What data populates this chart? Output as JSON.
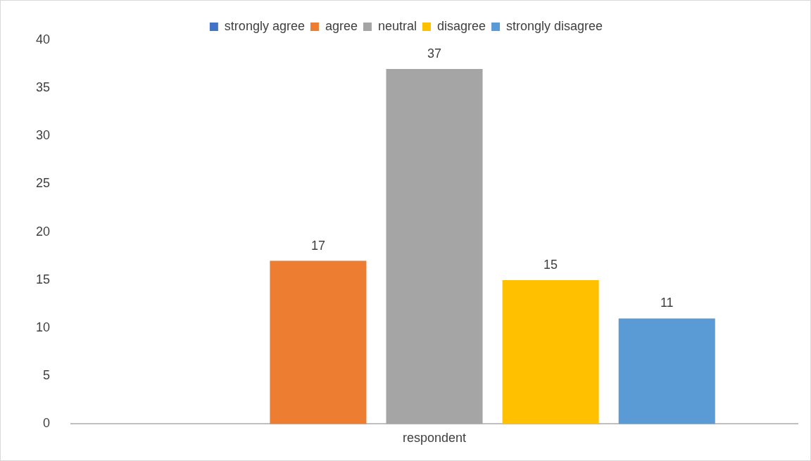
{
  "chart_data": {
    "type": "bar",
    "categories": [
      "respondent"
    ],
    "series": [
      {
        "name": "strongly agree",
        "color": "#4472c4",
        "values": [
          null
        ]
      },
      {
        "name": "agree",
        "color": "#ed7d31",
        "values": [
          17
        ]
      },
      {
        "name": "neutral",
        "color": "#a5a5a5",
        "values": [
          37
        ]
      },
      {
        "name": "disagree",
        "color": "#ffc000",
        "values": [
          15
        ]
      },
      {
        "name": "strongly disagree",
        "color": "#5b9bd5",
        "values": [
          11
        ]
      }
    ],
    "ylim": [
      0,
      40
    ],
    "yticks": [
      0,
      5,
      10,
      15,
      20,
      25,
      30,
      35,
      40
    ],
    "grid": false,
    "legend": "top",
    "data_labels": true
  }
}
